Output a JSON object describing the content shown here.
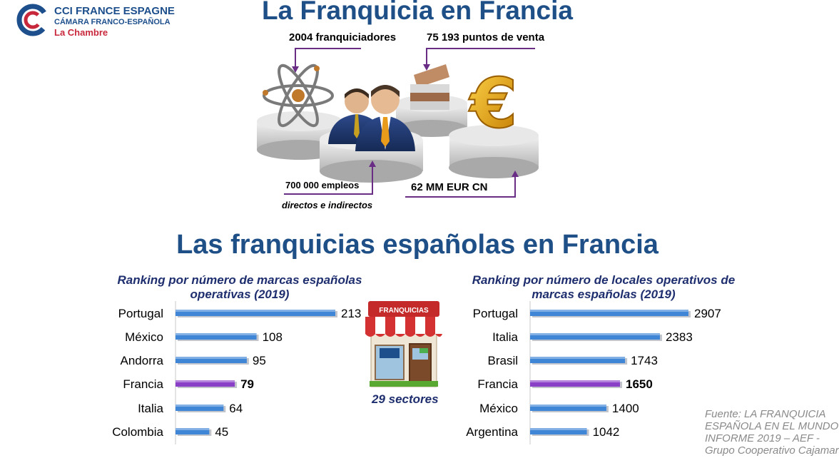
{
  "logo": {
    "line1": "CCI FRANCE ESPAGNE",
    "line2": "CÁMARA FRANCO-ESPAÑOLA",
    "line3": "La Chambre"
  },
  "header": {
    "title": "La Franquicia en Francia"
  },
  "stats": {
    "franquiciadores": "2004 franquiciadores",
    "puntos_venta": "75 193 puntos de venta",
    "empleos": "700 000 empleos",
    "empleos_sub": "directos e indirectos",
    "facturacion": "62 MM EUR CN"
  },
  "section": {
    "title": "Las franquicias españolas en Francia"
  },
  "store": {
    "sign": "FRANQUICIAS",
    "caption": "29 sectores"
  },
  "source": {
    "line1": "Fuente: LA FRANQUICIA",
    "line2": "ESPAÑOLA EN EL MUNDO",
    "line3": "INFORME 2019 – AEF -",
    "line4": "Grupo Cooperativo Cajamar"
  },
  "colors": {
    "bar": "#3f86d6",
    "highlight": "#8a3fc7",
    "title": "#1e4f86",
    "arrow": "#6a2d86"
  },
  "chart_data": [
    {
      "type": "bar",
      "orientation": "horizontal",
      "title": "Ranking por número de marcas españolas operativas (2019)",
      "categories": [
        "Portugal",
        "México",
        "Andorra",
        "Francia",
        "Italia",
        "Colombia"
      ],
      "values": [
        213,
        108,
        95,
        79,
        64,
        45
      ],
      "value_labels": [
        "213",
        "108",
        "95",
        "79",
        "64",
        "45"
      ],
      "highlight": "Francia",
      "xlim": [
        0,
        213
      ]
    },
    {
      "type": "bar",
      "orientation": "horizontal",
      "title": "Ranking por número de locales operativos de marcas españolas (2019)",
      "categories": [
        "Portugal",
        "Italia",
        "Brasil",
        "Francia",
        "México",
        "Argentina"
      ],
      "values": [
        2907,
        2383,
        1743,
        1650,
        1400,
        1042
      ],
      "value_labels": [
        "2907",
        "2383",
        "1743",
        "1650",
        "1400",
        "1042"
      ],
      "highlight": "Francia",
      "xlim": [
        0,
        2907
      ]
    }
  ]
}
